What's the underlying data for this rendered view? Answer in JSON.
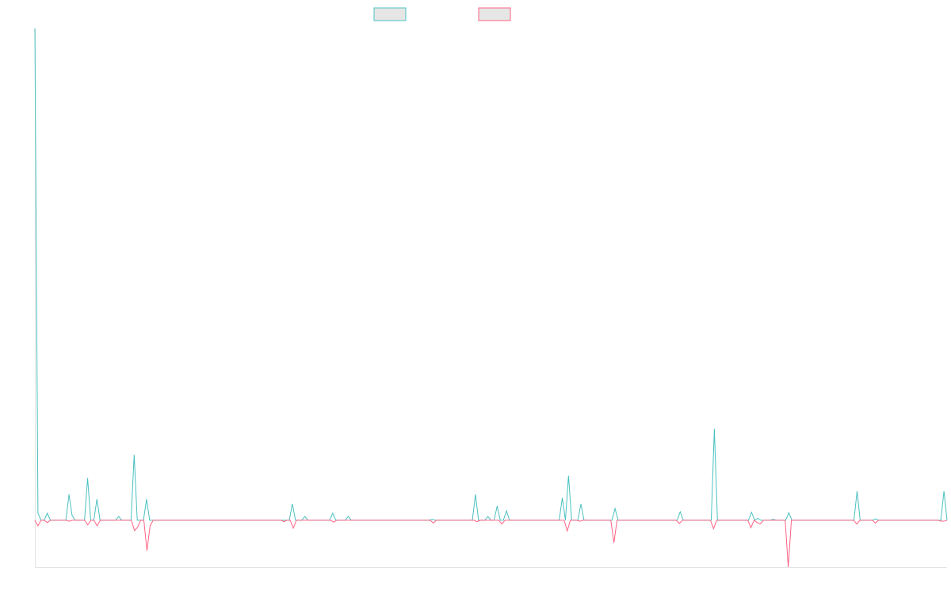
{
  "chart_data": {
    "type": "line",
    "title": "",
    "xlabel": "",
    "ylabel": "",
    "grid": false,
    "legend_position": "top-center",
    "ylim": [
      -10,
      105
    ],
    "colors": {
      "series_a": "#4bc0c0",
      "series_b": "#ff6384",
      "legend_fill": "#e6e6e6",
      "axis": "#e3e3e3"
    },
    "series": [
      {
        "name": "",
        "values": [
          105,
          1.5,
          0,
          0,
          1.5,
          0,
          0,
          0,
          0,
          0,
          0,
          5.5,
          1,
          0,
          0,
          0,
          0,
          9,
          0,
          0,
          4.5,
          0,
          0,
          0,
          0,
          0,
          0,
          0.8,
          0,
          0,
          0,
          0,
          14,
          0,
          0,
          0,
          4.5,
          0,
          0,
          0,
          0,
          0,
          0,
          0,
          0,
          0,
          0,
          0,
          0,
          0,
          0,
          0,
          0,
          0,
          0,
          0,
          0,
          0,
          0,
          0,
          0,
          0,
          0,
          0,
          0,
          0,
          0,
          0,
          0,
          0,
          0,
          0,
          0,
          0,
          0,
          0,
          0,
          0,
          0,
          0,
          0,
          0,
          0,
          3.5,
          0,
          0,
          0,
          0.8,
          0,
          0,
          0,
          0,
          0,
          0,
          0,
          0,
          1.5,
          0,
          0,
          0,
          0,
          0.8,
          0,
          0,
          0,
          0,
          0,
          0,
          0,
          0,
          0,
          0,
          0,
          0,
          0,
          0,
          0,
          0,
          0,
          0,
          0,
          0,
          0,
          0,
          0,
          0,
          0,
          0,
          0.2,
          0,
          0,
          0,
          0,
          0,
          0,
          0,
          0,
          0,
          0,
          0,
          0,
          0,
          5.5,
          0,
          0,
          0,
          0.8,
          0,
          0,
          3,
          0,
          0,
          2,
          0,
          0,
          0,
          0,
          0,
          0,
          0,
          0,
          0,
          0,
          0,
          0,
          0,
          0,
          0,
          0,
          0,
          4.8,
          0,
          9.5,
          0,
          0,
          0,
          3.5,
          0,
          0,
          0,
          0,
          0,
          0,
          0,
          0,
          0,
          0,
          2.5,
          0,
          0,
          0,
          0,
          0,
          0,
          0,
          0,
          0,
          0,
          0,
          0,
          0,
          0,
          0,
          0,
          0,
          0,
          0,
          0,
          1.8,
          0,
          0,
          0,
          0,
          0,
          0,
          0,
          0,
          0,
          0,
          19.5,
          0,
          0,
          0,
          0,
          0,
          0,
          0,
          0,
          0,
          0,
          0,
          1.7,
          0,
          0.4,
          0,
          0,
          0,
          0,
          0.2,
          0,
          0,
          0,
          0,
          1.6,
          0,
          0,
          0,
          0,
          0,
          0,
          0,
          0,
          0,
          0,
          0,
          0,
          0,
          0,
          0,
          0,
          0,
          0,
          0,
          0,
          0,
          6.2,
          0,
          0,
          0,
          0,
          0,
          0.3,
          0,
          0,
          0,
          0,
          0,
          0,
          0,
          0,
          0,
          0,
          0,
          0,
          0,
          0,
          0,
          0,
          0,
          0,
          0,
          0,
          0,
          6.2,
          0
        ]
      },
      {
        "name": "",
        "values": [
          0,
          -1.2,
          0,
          0,
          -0.5,
          0,
          0,
          0,
          0,
          0,
          0,
          -0.2,
          0,
          0,
          0,
          0,
          0,
          -1,
          0,
          0,
          -1.2,
          0,
          0,
          0,
          0,
          0,
          0,
          0,
          0,
          0,
          0,
          0,
          -2.2,
          -1.5,
          0,
          0,
          -6.5,
          -1.2,
          0,
          0,
          0,
          0,
          0,
          0,
          0,
          0,
          0,
          0,
          0,
          0,
          0,
          0,
          0,
          0,
          0,
          0,
          0,
          0,
          0,
          0,
          0,
          0,
          0,
          0,
          0,
          0,
          0,
          0,
          0,
          0,
          0,
          0,
          0,
          0,
          0,
          0,
          0,
          0,
          0,
          0,
          -0.3,
          0,
          0,
          -1.7,
          0,
          0,
          0,
          0,
          0,
          0,
          0,
          0,
          0,
          0,
          0,
          0,
          -0.4,
          0,
          0,
          0,
          0,
          0,
          0,
          0,
          0,
          0,
          0,
          0,
          0,
          0,
          0,
          0,
          0,
          0,
          0,
          0,
          0,
          0,
          0,
          0,
          0,
          0,
          0,
          0,
          0,
          0,
          0,
          0,
          -0.6,
          0,
          0,
          0,
          0,
          0,
          0,
          0,
          0,
          0,
          0,
          0,
          0,
          0,
          -0.3,
          0,
          0,
          0,
          0,
          0,
          0,
          0,
          -0.8,
          0,
          0,
          0,
          0,
          0,
          0,
          0,
          0,
          0,
          0,
          0,
          0,
          0,
          0,
          0,
          0,
          0,
          0,
          0,
          0,
          -2.3,
          0,
          0,
          0,
          -0.2,
          0,
          0,
          0,
          0,
          0,
          0,
          0,
          0,
          0,
          0,
          -4.8,
          0,
          0,
          0,
          0,
          0,
          0,
          0,
          0,
          0,
          0,
          0,
          0,
          0,
          0,
          0,
          0,
          0,
          0,
          0,
          0,
          -0.7,
          0,
          0,
          0,
          0,
          0,
          0,
          0,
          0,
          0,
          0,
          -1.8,
          0,
          0,
          0,
          0,
          0,
          0,
          0,
          0,
          0,
          0,
          0,
          -1.6,
          0,
          -0.5,
          -0.8,
          0,
          0,
          0,
          0,
          0,
          0,
          0,
          0,
          -10,
          0,
          0,
          0,
          0,
          0,
          0,
          0,
          0,
          0,
          0,
          0,
          0,
          0,
          0,
          0,
          0,
          0,
          0,
          0,
          0,
          0,
          -0.8,
          0,
          0,
          0,
          0,
          0,
          -0.6,
          0,
          0,
          0,
          0,
          0,
          0,
          0,
          0,
          0,
          0,
          0,
          0,
          0,
          0,
          0,
          0,
          0,
          0,
          0,
          0,
          -0.2,
          -0.2,
          0
        ]
      }
    ]
  }
}
